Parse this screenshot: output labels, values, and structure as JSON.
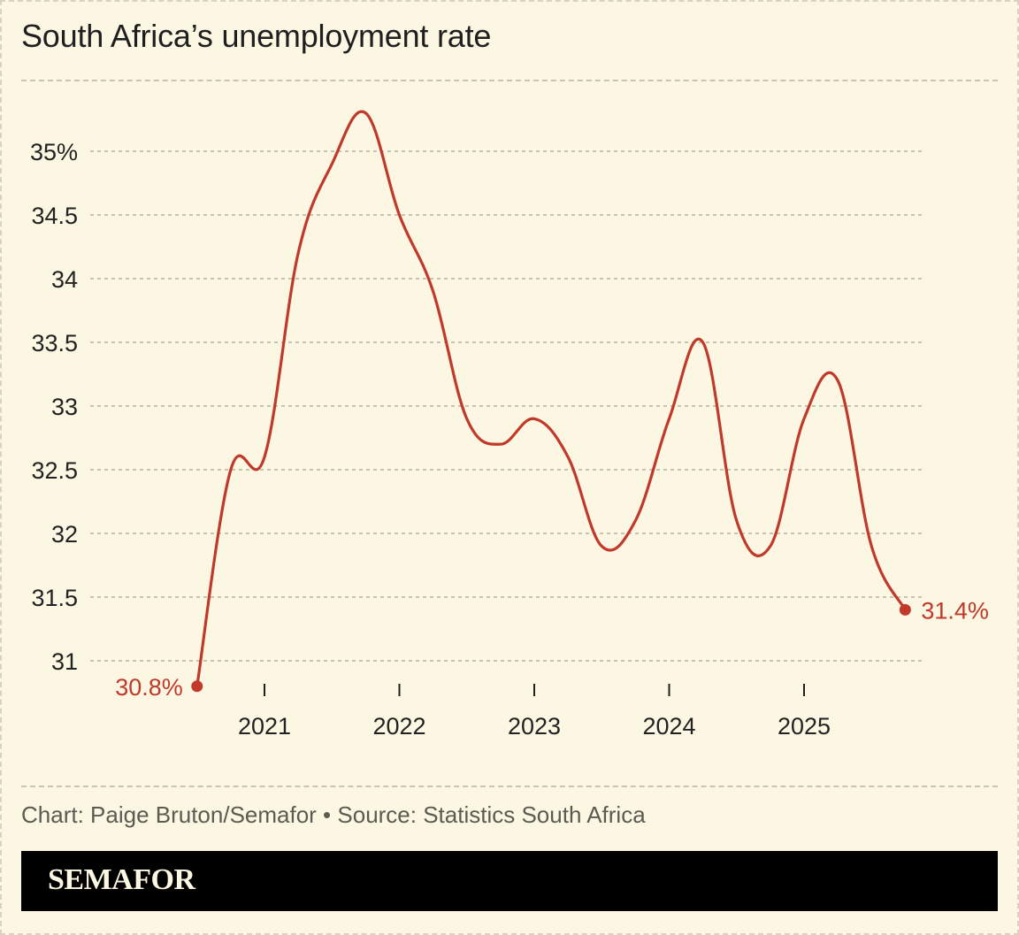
{
  "title": "South Africa’s unemployment rate",
  "credit": "Chart: Paige Bruton/Semafor • Source: Statistics South Africa",
  "logo": "SEMAFOR",
  "colors": {
    "background": "#fbf7e3",
    "line": "#c0392b",
    "grid": "#a9a596",
    "text": "#222222",
    "footer": "#000000"
  },
  "chart_data": {
    "type": "line",
    "title": "South Africa’s unemployment rate",
    "xlabel": "",
    "ylabel": "",
    "ylim": [
      31,
      35
    ],
    "yticks": [
      31,
      31.5,
      32,
      32.5,
      33,
      33.5,
      34,
      34.5,
      35
    ],
    "ytick_labels": [
      "31",
      "31.5",
      "32",
      "32.5",
      "33",
      "33.5",
      "34",
      "34.5",
      "35%"
    ],
    "xticks": [
      2021,
      2022,
      2023,
      2024,
      2025
    ],
    "xtick_labels": [
      "2021",
      "2022",
      "2023",
      "2024",
      "2025"
    ],
    "grid": "horizontal dashed",
    "series": [
      {
        "x": [
          2020.5,
          2020.75,
          2021.0,
          2021.25,
          2021.5,
          2021.75,
          2022.0,
          2022.25,
          2022.5,
          2022.75,
          2023.0,
          2023.25,
          2023.5,
          2023.75,
          2024.0,
          2024.25,
          2024.5,
          2024.75,
          2025.0,
          2025.25,
          2025.5,
          2025.75
        ],
        "values": [
          30.8,
          32.5,
          32.6,
          34.2,
          34.9,
          35.3,
          34.5,
          33.9,
          32.9,
          32.7,
          32.9,
          32.6,
          31.9,
          32.1,
          32.9,
          33.5,
          32.1,
          31.9,
          32.9,
          33.2,
          31.9,
          31.4
        ]
      }
    ],
    "annotations": [
      {
        "label": "30.8%",
        "x": 2020.5,
        "y": 30.8,
        "side": "left"
      },
      {
        "label": "31.4%",
        "x": 2025.75,
        "y": 31.4,
        "side": "right"
      }
    ]
  }
}
